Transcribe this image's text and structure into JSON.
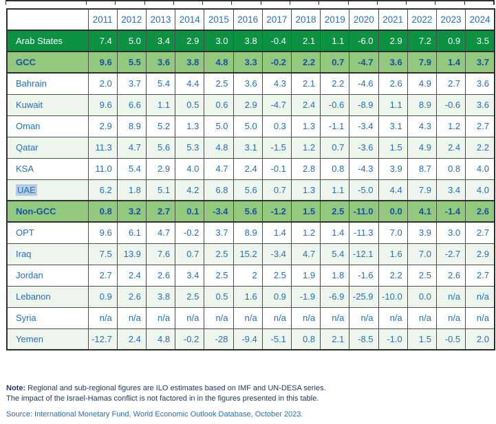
{
  "colors": {
    "region_green": "#0d9143",
    "group_green": "#92c97c",
    "stripe_green": "#edf5ed",
    "year_blue": "#2272c3",
    "value_blue": "#2270be",
    "group_blue": "#1353a8",
    "note_navy": "#1f3864",
    "source_blue": "#2a6fb0",
    "border_dark": "#2e2e2e",
    "border_light": "#4d4d4d",
    "selection_blue": "#b6cde0"
  },
  "chart_data": {
    "type": "table",
    "title": "",
    "corner_label": "",
    "categories": [
      "2011",
      "2012",
      "2013",
      "2014",
      "2015",
      "2016",
      "2017",
      "2018",
      "2019",
      "2020",
      "2021",
      "2022",
      "2023",
      "2024"
    ],
    "series": [
      {
        "name": "Arab States",
        "row_style": "region",
        "striped": false,
        "values": [
          "7.4",
          "5.0",
          "3.4",
          "2.9",
          "3.0",
          "3.8",
          "-0.4",
          "2.1",
          "1.1",
          "-6.0",
          "2.9",
          "7.2",
          "0.9",
          "3.5"
        ]
      },
      {
        "name": "GCC",
        "row_style": "group",
        "striped": false,
        "values": [
          "9.6",
          "5.5",
          "3.6",
          "3.8",
          "4.8",
          "3.3",
          "-0.2",
          "2.2",
          "0.7",
          "-4.7",
          "3.6",
          "7.9",
          "1.4",
          "3.7"
        ]
      },
      {
        "name": "Bahrain",
        "row_style": "country",
        "striped": false,
        "values": [
          "2.0",
          "3.7",
          "5.4",
          "4.4",
          "2.5",
          "3.6",
          "4.3",
          "2.1",
          "2.2",
          "-4.6",
          "2.6",
          "4.9",
          "2.7",
          "3.6"
        ]
      },
      {
        "name": "Kuwait",
        "row_style": "country",
        "striped": true,
        "values": [
          "9.6",
          "6.6",
          "1.1",
          "0.5",
          "0.6",
          "2.9",
          "-4.7",
          "2.4",
          "-0.6",
          "-8.9",
          "1.1",
          "8.9",
          "-0.6",
          "3.6"
        ]
      },
      {
        "name": "Oman",
        "row_style": "country",
        "striped": false,
        "values": [
          "2.9",
          "8.9",
          "5.2",
          "1.3",
          "5.0",
          "5.0",
          "0.3",
          "1.3",
          "-1.1",
          "-3.4",
          "3.1",
          "4.3",
          "1.2",
          "2.7"
        ]
      },
      {
        "name": "Qatar",
        "row_style": "country",
        "striped": true,
        "values": [
          "11.3",
          "4.7",
          "5.6",
          "5.3",
          "4.8",
          "3.1",
          "-1.5",
          "1.2",
          "0.7",
          "-3.6",
          "1.5",
          "4.9",
          "2.4",
          "2.2"
        ]
      },
      {
        "name": "KSA",
        "row_style": "country",
        "striped": false,
        "values": [
          "11.0",
          "5.4",
          "2.9",
          "4.0",
          "4.7",
          "2.4",
          "-0.1",
          "2.8",
          "0.8",
          "-4.3",
          "3.9",
          "8.7",
          "0.8",
          "4.0"
        ]
      },
      {
        "name": "UAE",
        "row_style": "country",
        "striped": true,
        "label_selected": true,
        "values": [
          "6.2",
          "1.8",
          "5.1",
          "4.2",
          "6.8",
          "5.6",
          "0.7",
          "1.3",
          "1.1",
          "-5.0",
          "4.4",
          "7.9",
          "3.4",
          "4.0"
        ]
      },
      {
        "name": "Non-GCC",
        "row_style": "group",
        "striped": false,
        "values": [
          "0.8",
          "3.2",
          "2.7",
          "0.1",
          "-3.4",
          "5.6",
          "-1.2",
          "1.5",
          "2.5",
          "-11.0",
          "0.0",
          "4.1",
          "-1.4",
          "2.6"
        ]
      },
      {
        "name": "OPT",
        "row_style": "country",
        "striped": false,
        "values": [
          "9.6",
          "6.1",
          "4.7",
          "-0.2",
          "3.7",
          "8.9",
          "1.4",
          "1.2",
          "1.4",
          "-11.3",
          "7.0",
          "3.9",
          "3.0",
          "2.7"
        ]
      },
      {
        "name": "Iraq",
        "row_style": "country",
        "striped": true,
        "values": [
          "7.5",
          "13.9",
          "7.6",
          "0.7",
          "2.5",
          "15.2",
          "-3.4",
          "4.7",
          "5.4",
          "-12.1",
          "1.6",
          "7.0",
          "-2.7",
          "2.9"
        ]
      },
      {
        "name": "Jordan",
        "row_style": "country",
        "striped": false,
        "values": [
          "2.7",
          "2.4",
          "2.6",
          "3.4",
          "2.5",
          "2",
          "2.5",
          "1.9",
          "1.8",
          "-1.6",
          "2.2",
          "2.5",
          "2.6",
          "2.7"
        ]
      },
      {
        "name": "Lebanon",
        "row_style": "country",
        "striped": true,
        "values": [
          "0.9",
          "2.6",
          "3.8",
          "2.5",
          "0.5",
          "1.6",
          "0.9",
          "-1.9",
          "-6.9",
          "-25.9",
          "-10.0",
          "0.0",
          "n/a",
          "n/a"
        ]
      },
      {
        "name": "Syria",
        "row_style": "country",
        "striped": false,
        "values": [
          "n/a",
          "n/a",
          "n/a",
          "n/a",
          "n/a",
          "n/a",
          "n/a",
          "n/a",
          "n/a",
          "n/a",
          "n/a",
          "n/a",
          "n/a",
          "n/a"
        ]
      },
      {
        "name": "Yemen",
        "row_style": "country",
        "striped": true,
        "values": [
          "-12.7",
          "2.4",
          "4.8",
          "-0.2",
          "-28",
          "-9.4",
          "-5.1",
          "0.8",
          "2.1",
          "-8.5",
          "-1.0",
          "1.5",
          "-0.5",
          "2.0"
        ]
      }
    ]
  },
  "notes": {
    "note_label": "Note:",
    "note_line1": "Regional and sub-regional figures are ILO estimates based on IMF and UN-DESA series.",
    "note_line2": "The impact of the Israel-Hamas conflict is not factored in in the figures presented in this table.",
    "source": "Source: International Monetary Fund, World Economic Outlook Database, October 2023."
  }
}
